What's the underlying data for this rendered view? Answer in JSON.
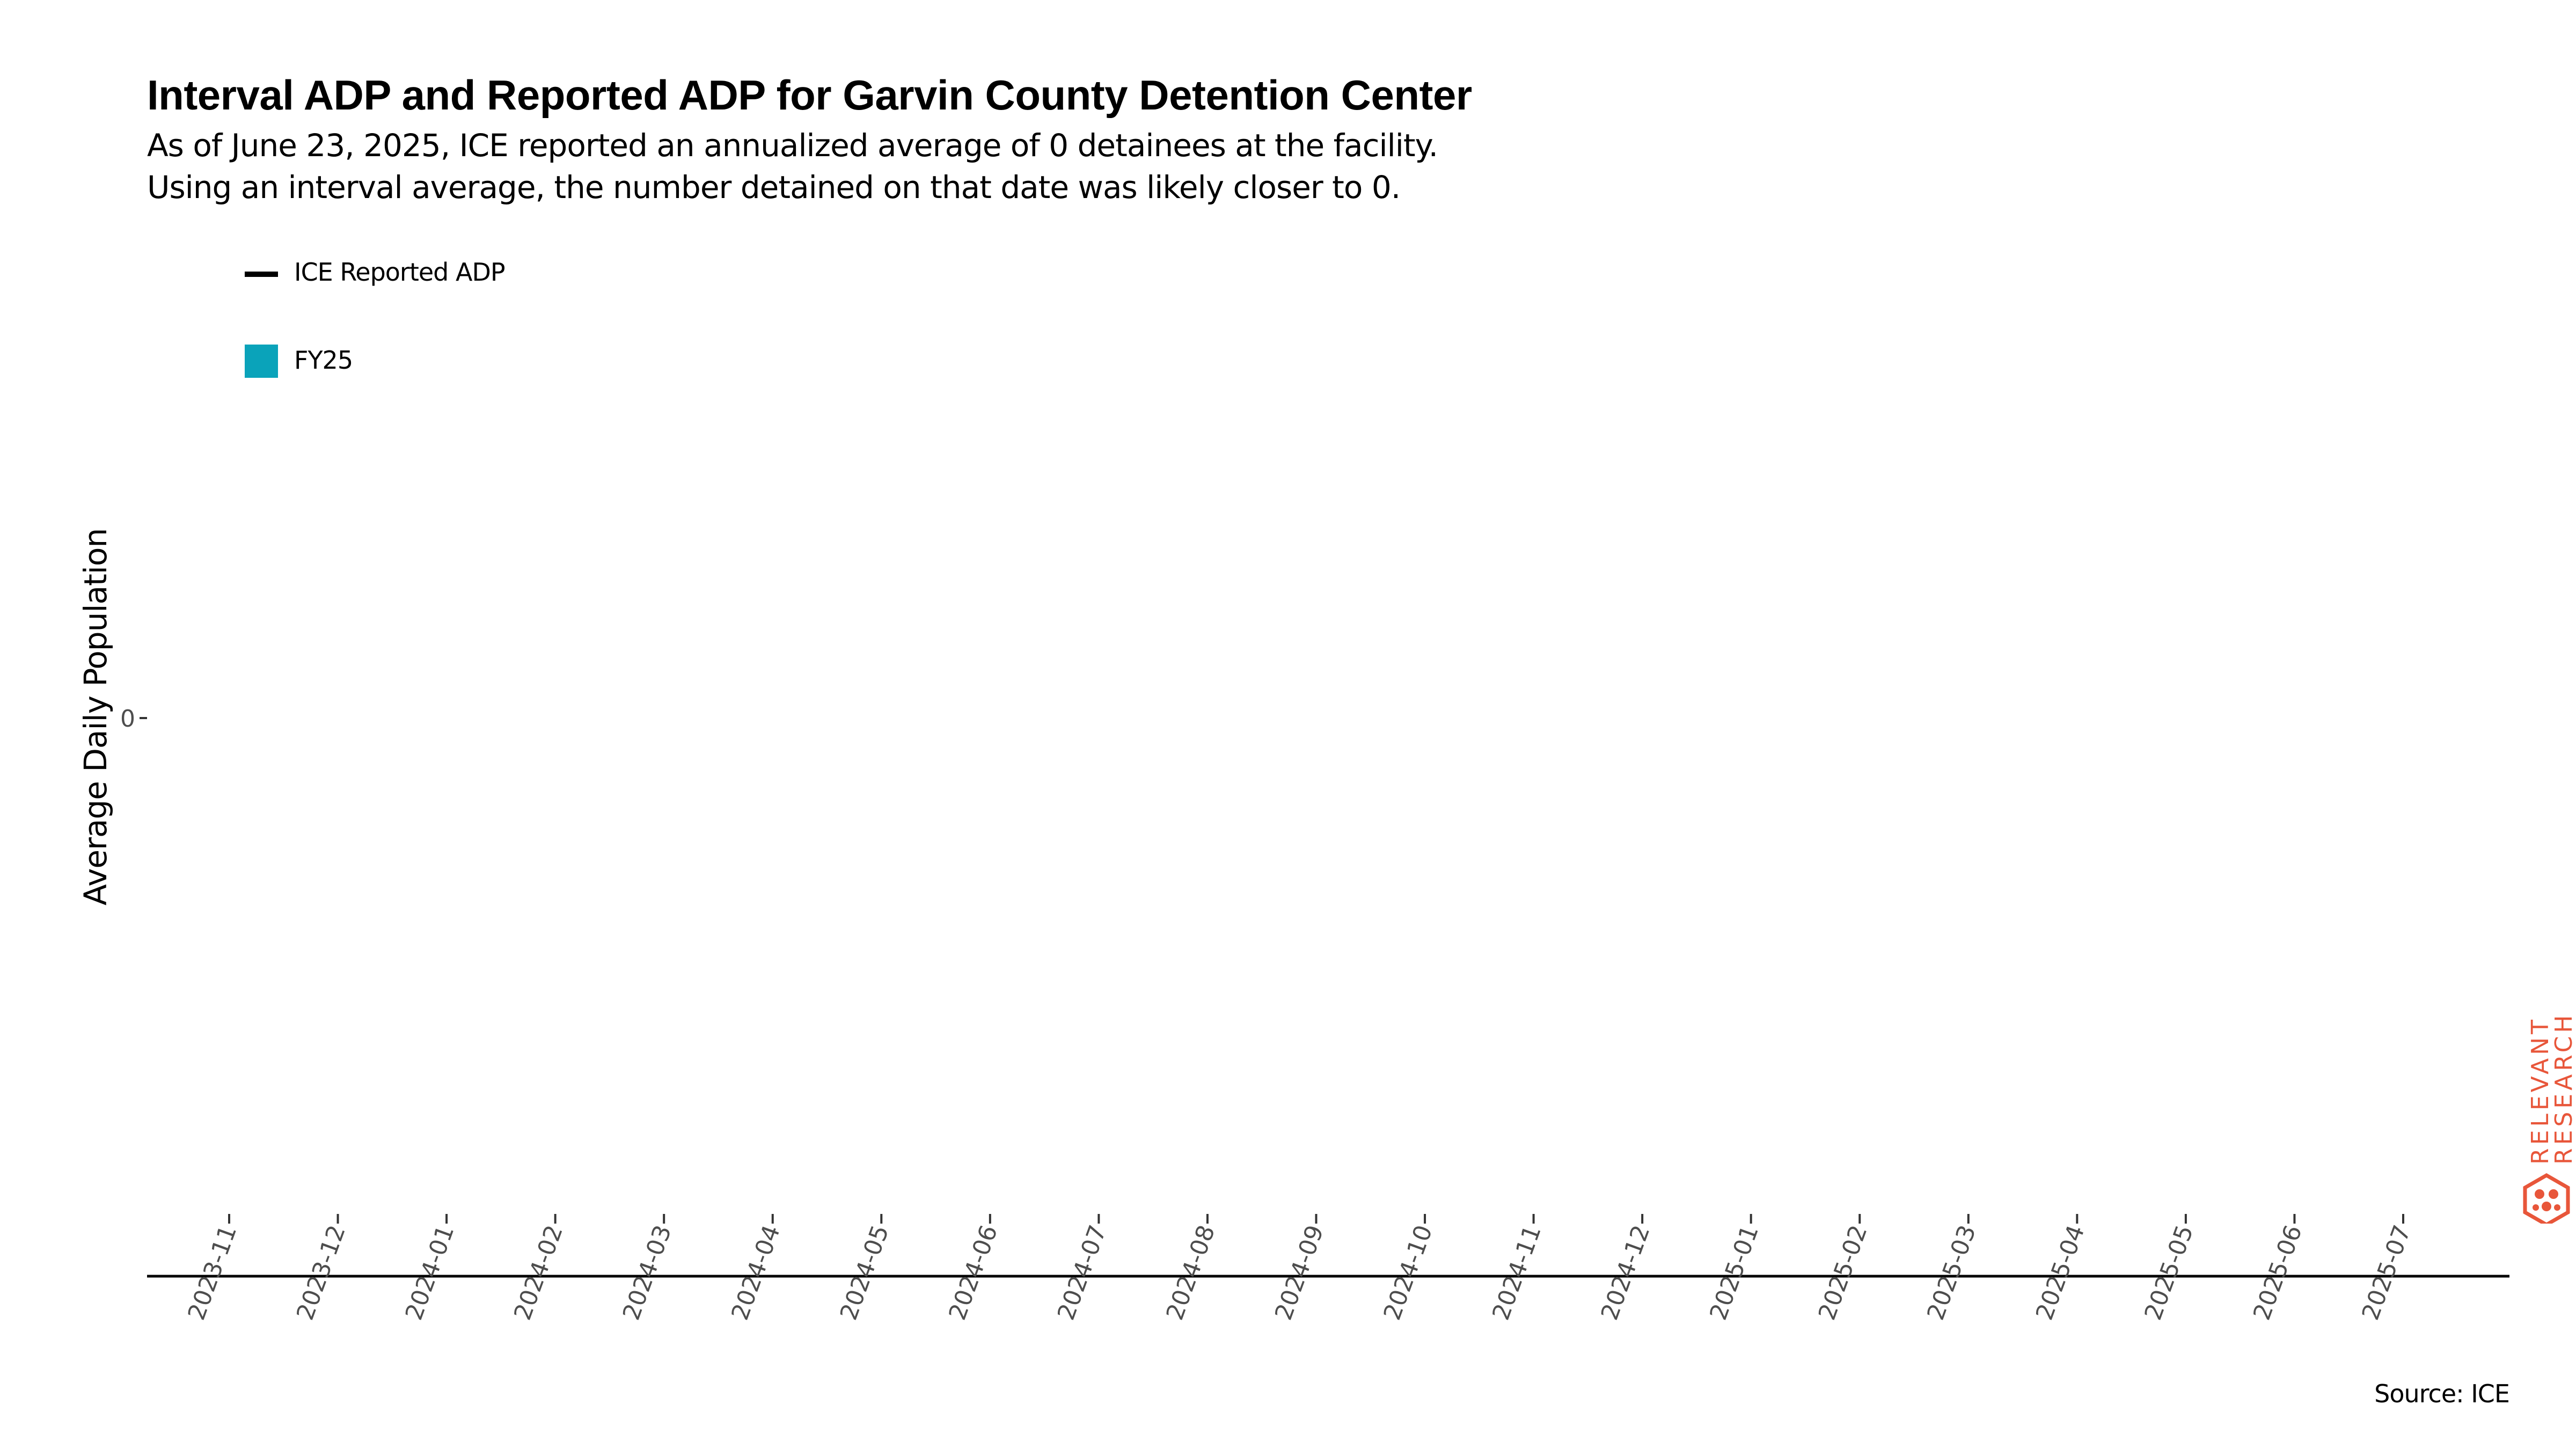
{
  "chart_data": {
    "type": "line",
    "title": "Interval ADP and Reported ADP for Garvin County Detention Center",
    "subtitle_lines": [
      "As of June 23, 2025, ICE reported an annualized average of 0 detainees at the facility.",
      "Using an interval average, the number detained on that date was likely closer to 0."
    ],
    "xlabel": "",
    "ylabel": "Average Daily Population",
    "x_ticks": [
      "2023-11",
      "2023-12",
      "2024-01",
      "2024-02",
      "2024-03",
      "2024-04",
      "2024-05",
      "2024-06",
      "2024-07",
      "2024-08",
      "2024-09",
      "2024-10",
      "2024-11",
      "2024-12",
      "2025-01",
      "2025-02",
      "2025-03",
      "2025-04",
      "2025-05",
      "2025-06",
      "2025-07"
    ],
    "y_ticks": [
      "0"
    ],
    "legend": [
      {
        "name": "ICE Reported ADP",
        "kind": "line",
        "color": "#000000"
      },
      {
        "name": "FY25",
        "kind": "fill",
        "color": "#0aa3ba"
      }
    ],
    "legend_position": "top-left",
    "series": [],
    "grid": false,
    "caption": "Source: ICE"
  },
  "logo": {
    "line1": "RELEVANT",
    "line2": "RESEARCH",
    "color": "#e8563a"
  }
}
